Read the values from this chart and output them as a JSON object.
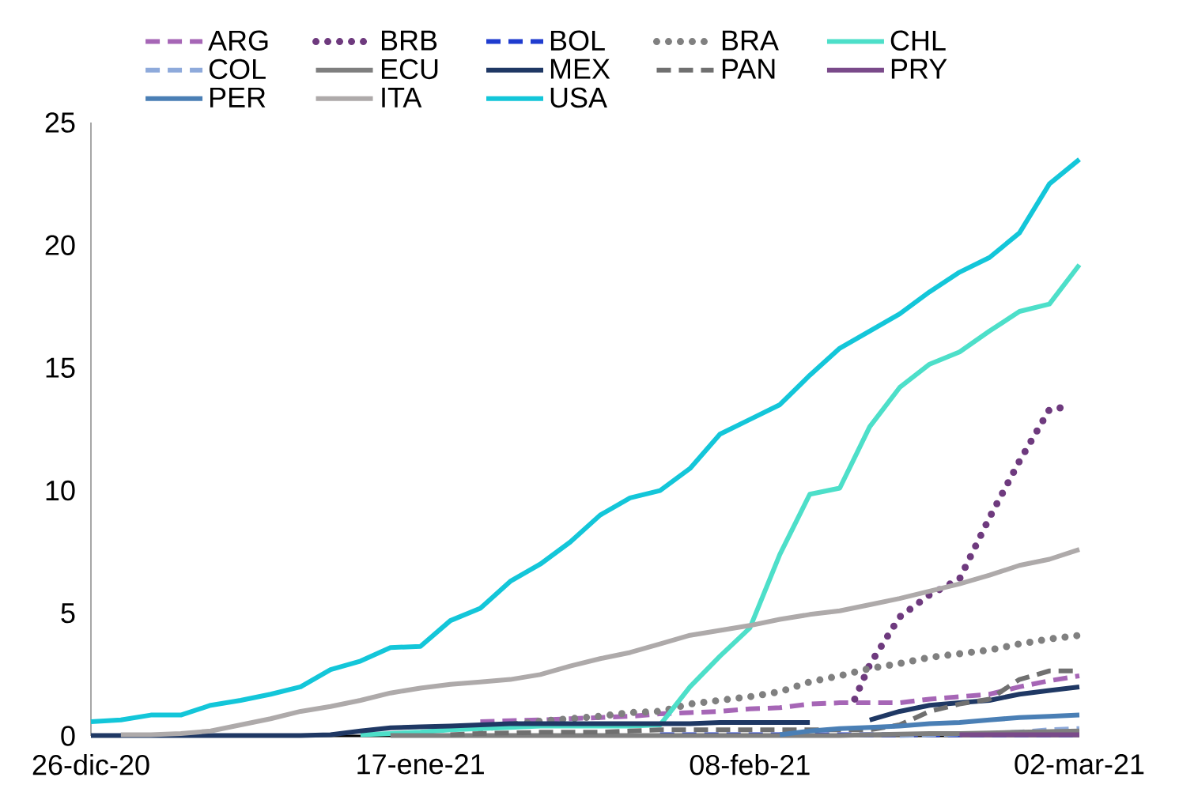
{
  "chart_data": {
    "type": "line",
    "legend": "top",
    "xlim": [
      "2020-12-26",
      "2021-03-02"
    ],
    "xticks": [
      {
        "value": "2020-12-26",
        "label": "26-dic-20"
      },
      {
        "value": "2021-01-17",
        "label": "17-ene-21"
      },
      {
        "value": "2021-02-08",
        "label": "08-feb-21"
      },
      {
        "value": "2021-03-02",
        "label": "02-mar-21"
      }
    ],
    "ylim": [
      0,
      25
    ],
    "yticks": [
      0,
      5,
      10,
      15,
      20,
      25
    ],
    "x": [
      "2020-12-26",
      "2020-12-28",
      "2020-12-30",
      "2021-01-01",
      "2021-01-03",
      "2021-01-05",
      "2021-01-07",
      "2021-01-09",
      "2021-01-11",
      "2021-01-13",
      "2021-01-15",
      "2021-01-17",
      "2021-01-19",
      "2021-01-21",
      "2021-01-23",
      "2021-01-25",
      "2021-01-27",
      "2021-01-29",
      "2021-01-31",
      "2021-02-02",
      "2021-02-04",
      "2021-02-06",
      "2021-02-08",
      "2021-02-10",
      "2021-02-12",
      "2021-02-14",
      "2021-02-16",
      "2021-02-18",
      "2021-02-20",
      "2021-02-22",
      "2021-02-24",
      "2021-02-26",
      "2021-02-28",
      "2021-03-02"
    ],
    "series": [
      {
        "name": "ARG",
        "color": "#a666b6",
        "line_style": "dashed",
        "values": [
          null,
          null,
          null,
          null,
          null,
          null,
          null,
          null,
          null,
          null,
          null,
          null,
          null,
          0.58,
          0.62,
          0.65,
          0.7,
          0.75,
          0.8,
          0.9,
          0.95,
          1.0,
          1.1,
          1.15,
          1.3,
          1.35,
          1.35,
          1.35,
          1.5,
          1.6,
          1.7,
          2.0,
          2.25,
          2.45
        ]
      },
      {
        "name": "BRB",
        "color": "#6e3a7e",
        "line_style": "dotted",
        "x": [
          "2021-02-15",
          "2021-02-16",
          "2021-02-18",
          "2021-02-20",
          "2021-02-22",
          "2021-02-24",
          "2021-02-26",
          "2021-02-28",
          "2021-03-01"
        ],
        "values": [
          1.5,
          2.9,
          4.85,
          5.75,
          6.4,
          8.9,
          11.2,
          13.3,
          13.4
        ]
      },
      {
        "name": "BOL",
        "color": "#1f3ccf",
        "line_style": "dashed",
        "values": [
          null,
          null,
          null,
          null,
          null,
          null,
          null,
          null,
          null,
          null,
          null,
          null,
          null,
          null,
          null,
          null,
          null,
          null,
          null,
          0.05,
          0.05,
          0.05,
          0.05,
          0.05,
          0.05,
          0.05,
          0.05,
          0.05,
          0.05,
          0.05,
          0.05,
          0.05,
          0.05,
          0.05
        ]
      },
      {
        "name": "BRA",
        "color": "#808080",
        "line_style": "dotted",
        "values": [
          null,
          null,
          null,
          null,
          null,
          null,
          null,
          null,
          null,
          null,
          null,
          null,
          null,
          0.3,
          0.45,
          0.6,
          0.7,
          0.8,
          0.95,
          1.0,
          1.3,
          1.45,
          1.6,
          1.8,
          2.2,
          2.45,
          2.75,
          2.95,
          3.2,
          3.35,
          3.5,
          3.75,
          3.95,
          4.1
        ]
      },
      {
        "name": "CHL",
        "color": "#4ddfc9",
        "line_style": "solid",
        "values": [
          null,
          null,
          null,
          null,
          null,
          null,
          null,
          null,
          null,
          0.05,
          0.1,
          0.15,
          0.25,
          0.3,
          0.35,
          0.4,
          0.4,
          0.4,
          0.4,
          0.45,
          2.0,
          3.25,
          4.4,
          7.4,
          9.85,
          10.1,
          12.6,
          14.2,
          15.15,
          15.65,
          16.5,
          17.3,
          17.6,
          19.2
        ]
      },
      {
        "name": "COL",
        "color": "#8eaadb",
        "line_style": "dashed",
        "values": [
          null,
          null,
          null,
          null,
          null,
          null,
          null,
          null,
          null,
          null,
          null,
          null,
          null,
          null,
          null,
          null,
          null,
          null,
          null,
          null,
          null,
          null,
          null,
          null,
          null,
          null,
          null,
          0.02,
          0.05,
          0.08,
          0.1,
          0.15,
          0.25,
          0.3
        ]
      },
      {
        "name": "ECU",
        "color": "#7f7f7f",
        "line_style": "solid",
        "values": [
          null,
          null,
          null,
          null,
          null,
          null,
          null,
          null,
          null,
          null,
          0.02,
          0.02,
          0.02,
          0.02,
          0.02,
          0.02,
          0.02,
          0.02,
          0.02,
          0.02,
          0.02,
          0.02,
          0.02,
          0.02,
          0.02,
          0.02,
          0.05,
          0.07,
          0.1,
          0.1,
          0.12,
          0.15,
          0.18,
          0.2
        ]
      },
      {
        "name": "MEX",
        "color": "#1f3864",
        "line_style": "solid",
        "values": [
          0.02,
          0.02,
          0.02,
          0.02,
          0.02,
          0.02,
          0.02,
          0.02,
          0.05,
          0.2,
          0.33,
          0.37,
          0.4,
          0.45,
          0.5,
          0.5,
          0.5,
          0.5,
          0.5,
          0.5,
          0.5,
          0.55,
          0.55,
          0.55,
          0.55,
          null,
          0.65,
          1.0,
          1.25,
          1.35,
          1.45,
          1.7,
          1.85,
          2.0
        ]
      },
      {
        "name": "PAN",
        "color": "#707070",
        "line_style": "dashed",
        "values": [
          null,
          null,
          null,
          null,
          null,
          null,
          null,
          null,
          null,
          null,
          null,
          null,
          0.05,
          0.1,
          0.12,
          0.15,
          0.15,
          0.15,
          0.2,
          0.25,
          0.25,
          0.25,
          0.25,
          0.25,
          0.25,
          0.25,
          0.25,
          0.45,
          1.0,
          1.3,
          1.5,
          2.3,
          2.65,
          2.65
        ]
      },
      {
        "name": "PRY",
        "color": "#7a4a8a",
        "line_style": "solid",
        "values": [
          null,
          null,
          null,
          null,
          null,
          null,
          null,
          null,
          null,
          null,
          null,
          null,
          null,
          null,
          null,
          null,
          null,
          null,
          null,
          null,
          null,
          null,
          null,
          null,
          null,
          null,
          null,
          null,
          null,
          0.05,
          0.05,
          0.05,
          0.05,
          0.05
        ]
      },
      {
        "name": "PER",
        "color": "#4a7fb5",
        "line_style": "solid",
        "values": [
          null,
          null,
          null,
          null,
          null,
          null,
          null,
          null,
          null,
          null,
          null,
          null,
          null,
          null,
          null,
          null,
          null,
          null,
          null,
          null,
          null,
          null,
          null,
          0.05,
          0.2,
          0.3,
          0.35,
          0.4,
          0.5,
          0.55,
          0.65,
          0.75,
          0.8,
          0.85
        ]
      },
      {
        "name": "ITA",
        "color": "#aeaaaa",
        "line_style": "solid",
        "values": [
          null,
          0.05,
          0.05,
          0.1,
          0.2,
          0.45,
          0.7,
          1.0,
          1.2,
          1.45,
          1.75,
          1.95,
          2.1,
          2.2,
          2.3,
          2.5,
          2.85,
          3.15,
          3.4,
          3.75,
          4.1,
          4.3,
          4.5,
          4.75,
          4.95,
          5.1,
          5.35,
          5.6,
          5.9,
          6.2,
          6.55,
          6.95,
          7.2,
          7.6
        ]
      },
      {
        "name": "USA",
        "color": "#13c6d9",
        "line_style": "solid",
        "values": [
          0.58,
          0.65,
          0.85,
          0.85,
          1.25,
          1.45,
          1.7,
          2.0,
          2.7,
          3.05,
          3.6,
          3.65,
          4.7,
          5.2,
          6.3,
          7.0,
          7.9,
          9.0,
          9.7,
          10.0,
          10.9,
          12.3,
          12.9,
          13.5,
          14.7,
          15.8,
          16.5,
          17.2,
          18.1,
          18.9,
          19.5,
          20.5,
          22.5,
          23.5
        ]
      }
    ]
  }
}
